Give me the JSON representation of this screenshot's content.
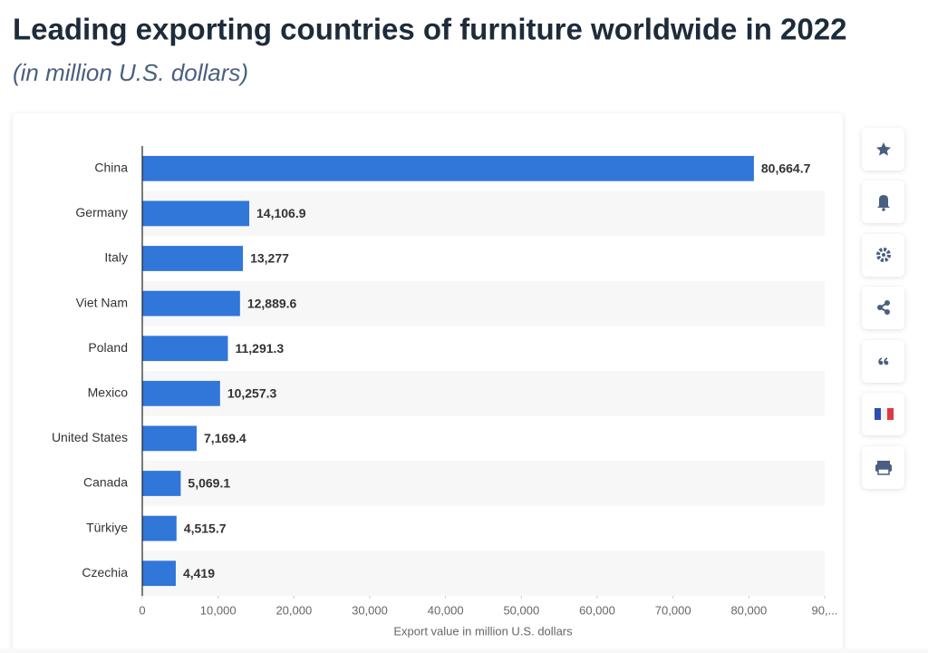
{
  "chart_data": {
    "type": "bar",
    "orientation": "horizontal",
    "title": "Leading exporting countries of furniture worldwide in 2022",
    "subtitle": "(in million U.S. dollars)",
    "x_label": "Export value in million U.S. dollars",
    "categories": [
      "China",
      "Germany",
      "Italy",
      "Viet Nam",
      "Poland",
      "Mexico",
      "United States",
      "Canada",
      "Türkiye",
      "Czechia"
    ],
    "values": [
      80664.7,
      14106.9,
      13277,
      12889.6,
      11291.3,
      10257.3,
      7169.4,
      5069.1,
      4515.7,
      4419
    ],
    "value_labels": [
      "80,664.7",
      "14,106.9",
      "13,277",
      "12,889.6",
      "11,291.3",
      "10,257.3",
      "7,169.4",
      "5,069.1",
      "4,515.7",
      "4,419"
    ],
    "color": "#3176d9",
    "xlim": [
      0,
      90000
    ],
    "xticks": [
      0,
      {
        "value": 10000,
        "label": "10,000"
      },
      {
        "value": 20000,
        "label": "20,000"
      },
      {
        "value": 30000,
        "label": "30,000"
      },
      {
        "value": 40000,
        "label": "40,000"
      },
      {
        "value": 50000,
        "label": "50,000"
      },
      {
        "value": 60000,
        "label": "60,000"
      },
      {
        "value": 70000,
        "label": "70,000"
      },
      {
        "value": 80000,
        "label": "80,000"
      },
      {
        "value": 90000,
        "label": "90,..."
      }
    ]
  }
}
